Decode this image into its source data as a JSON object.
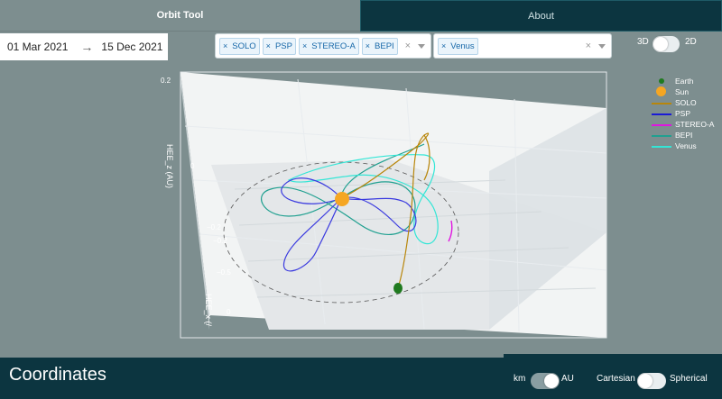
{
  "tabs": [
    {
      "label": "Orbit Tool",
      "active": true
    },
    {
      "label": "About",
      "active": false
    }
  ],
  "date_range": {
    "start": "01 Mar 2021",
    "end": "15 Dec 2021",
    "arrow": "→"
  },
  "spacecraft_select": {
    "chips": [
      "SOLO",
      "PSP",
      "STEREO-A",
      "BEPI"
    ],
    "clear": "×"
  },
  "planet_select": {
    "chips": [
      "Venus"
    ],
    "clear": "×"
  },
  "view_toggle": {
    "left": "3D",
    "right": "2D",
    "value": "3D"
  },
  "axes": {
    "z_label": "HEE_z (AU)",
    "x_label": "HEE_x (/",
    "z_ticks": [
      "0.2",
      "0",
      "−0.2"
    ],
    "x_ticks": [
      "−0.2",
      "−0.5",
      "0"
    ]
  },
  "legend": [
    {
      "name": "Earth",
      "color": "#1f7a1f",
      "type": "dot"
    },
    {
      "name": "Sun",
      "color": "#f5a623",
      "type": "bigdot"
    },
    {
      "name": "SOLO",
      "color": "#b8860b",
      "type": "line"
    },
    {
      "name": "PSP",
      "color": "#1a1ad6",
      "type": "line"
    },
    {
      "name": "STEREO-A",
      "color": "#e015e0",
      "type": "line"
    },
    {
      "name": "BEPI",
      "color": "#20a090",
      "type": "line"
    },
    {
      "name": "Venus",
      "color": "#33e6d6",
      "type": "line"
    }
  ],
  "coordinates": {
    "title": "Coordinates"
  },
  "unit_toggle": {
    "left": "km",
    "right": "AU",
    "value": "AU"
  },
  "system_toggle": {
    "left": "Cartesian",
    "right": "Spherical",
    "value": "Cartesian"
  }
}
